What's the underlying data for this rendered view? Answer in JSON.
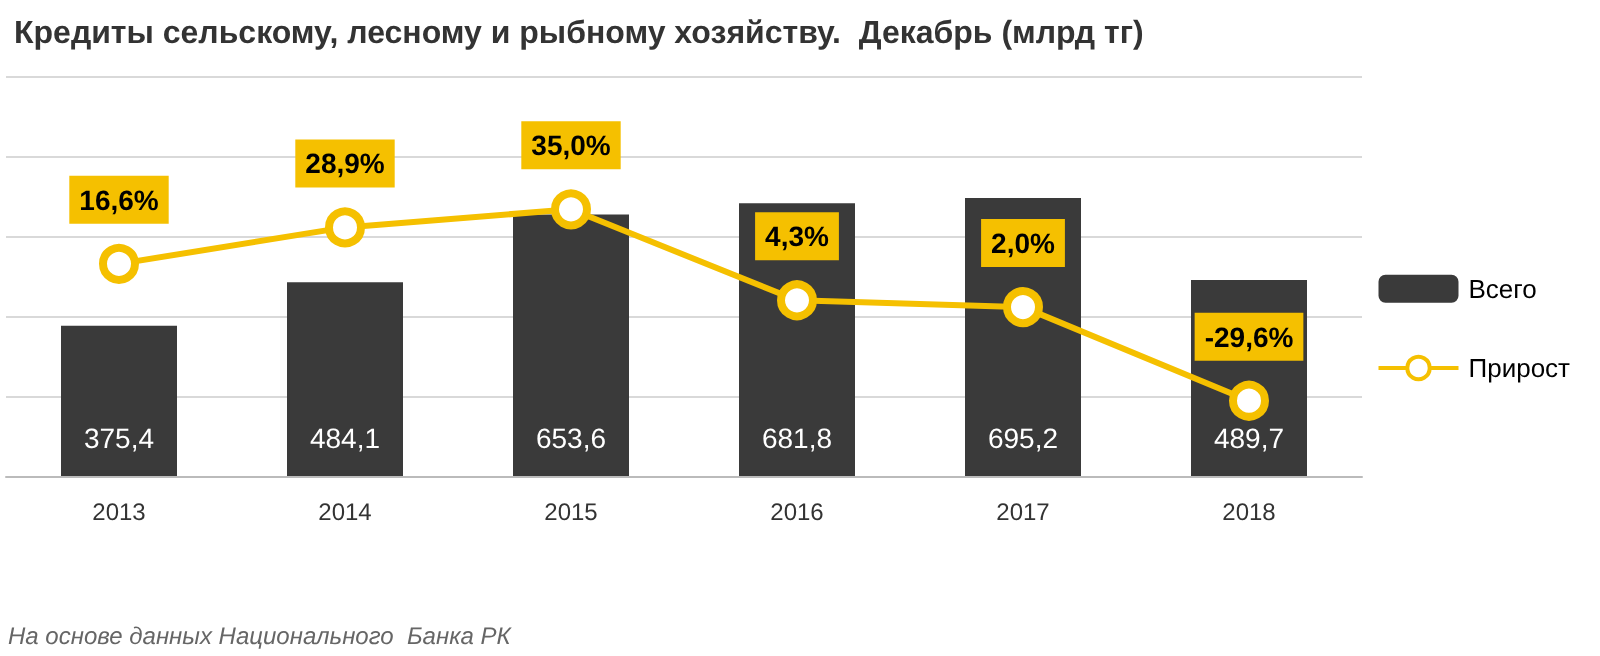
{
  "chart_data": {
    "type": "bar",
    "title": "Кредиты сельскому, лесному и рыбному хозяйству.  Декабрь (млрд тг)",
    "categories": [
      "2013",
      "2014",
      "2015",
      "2016",
      "2017",
      "2018"
    ],
    "series": [
      {
        "name": "Всего",
        "color": "#3a3a3a",
        "values": [
          375.4,
          484.1,
          653.6,
          681.8,
          695.2,
          489.7
        ],
        "value_labels": [
          "375,4",
          "484,1",
          "653,6",
          "681,8",
          "695,2",
          "489,7"
        ]
      },
      {
        "name": "Прирост",
        "type": "line",
        "axis": "y2",
        "color": "#f5c000",
        "values": [
          16.6,
          28.9,
          35.0,
          4.3,
          2.0,
          -29.6
        ],
        "value_labels": [
          "16,6%",
          "28,9%",
          "35,0%",
          "4,3%",
          "2,0%",
          "-29,6%"
        ]
      }
    ],
    "ylim": [
      0,
      1000
    ],
    "yticks": [
      {
        "value": 0,
        "label": null
      },
      {
        "value": 200,
        "label": null
      },
      {
        "value": 400,
        "label": null
      },
      {
        "value": 600,
        "label": null
      },
      {
        "value": 800,
        "label": null
      },
      {
        "value": 1000,
        "label": null
      }
    ],
    "y2lim": [
      -55,
      80
    ],
    "grid": "y",
    "legend": "right",
    "marker": "circle",
    "line_style": "solid",
    "tick_labels": "x",
    "annotations": [
      "На основе данных Национального  Банка РК"
    ]
  }
}
